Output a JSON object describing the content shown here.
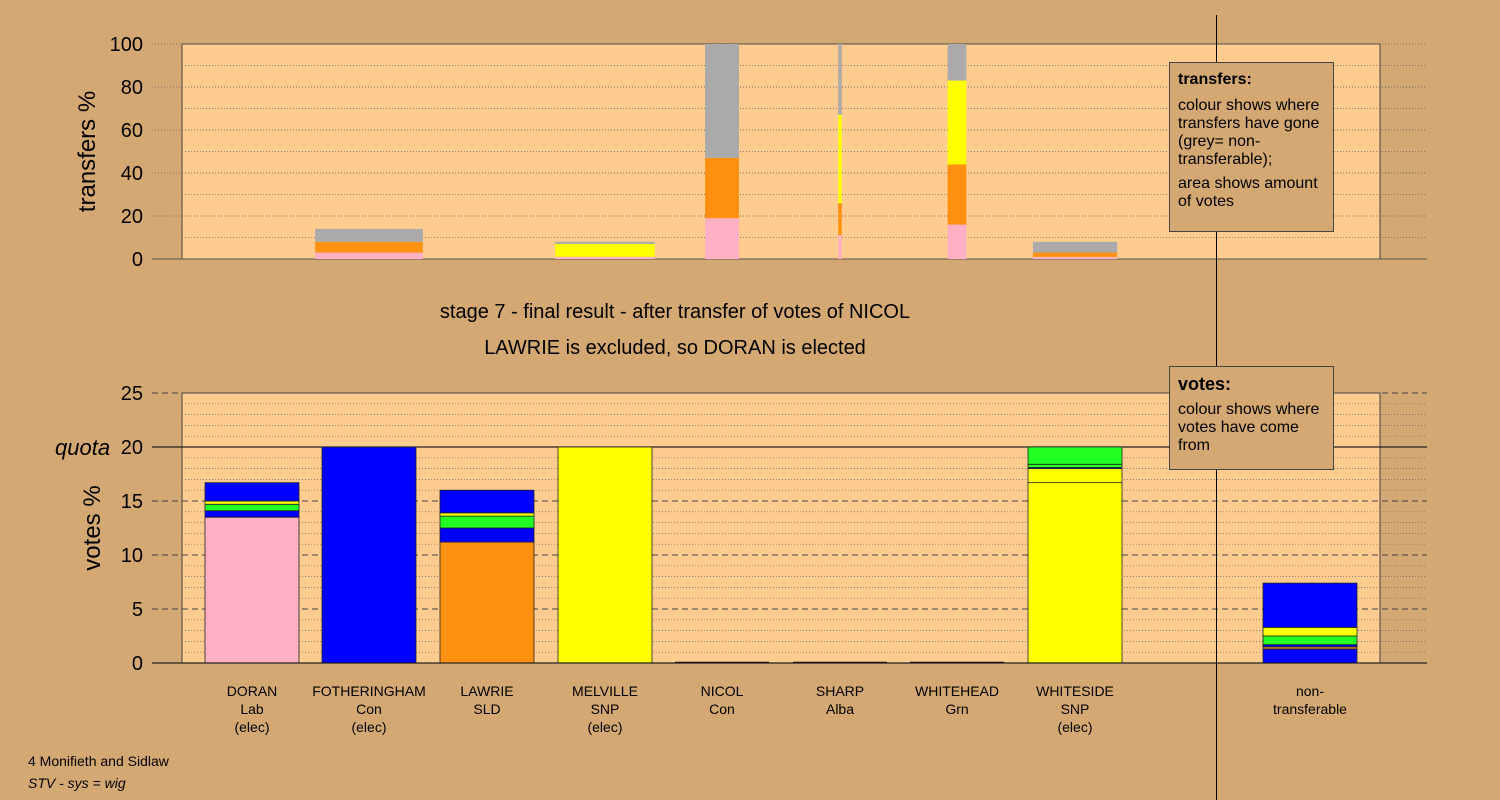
{
  "caption": {
    "line1": "stage 7 - final result - after transfer of votes of NICOL",
    "line2": "LAWRIE is excluded, so DORAN is elected"
  },
  "footer": {
    "line1": "4 Monifieth and Sidlaw",
    "line2": "STV - sys = wig"
  },
  "legend_transfers": {
    "title": "transfers:",
    "line1": "colour shows where transfers have gone (grey= non-transferable);",
    "line2": "area shows amount of votes"
  },
  "legend_votes": {
    "title": "votes:",
    "line1": "colour shows where votes have come from"
  },
  "colors": {
    "Lab": "#ffb0c4",
    "Con": "#0000ff",
    "SLD": "#ff9010",
    "SNP": "#ffff00",
    "Grn": "#22ff22",
    "NT": "#aaaaaa",
    "plot_bg": "#ffcc90",
    "page_bg": "#d4a872"
  },
  "chart_data": [
    {
      "type": "bar",
      "id": "transfers",
      "ylabel": "transfers %",
      "ylim": [
        0,
        100
      ],
      "yticks": [
        0,
        20,
        40,
        60,
        80,
        100
      ],
      "categories": [
        "DORAN",
        "FOTHERINGHAM",
        "LAWRIE",
        "MELVILLE",
        "NICOL",
        "SHARP",
        "WHITEHEAD",
        "WHITESIDE"
      ],
      "bars": [
        {
          "candidate": "FOTHERINGHAM",
          "width_rel": 0.92,
          "segments": [
            {
              "party": "Lab",
              "value": 3
            },
            {
              "party": "SLD",
              "value": 5
            },
            {
              "party": "NT",
              "value": 6
            }
          ]
        },
        {
          "candidate": "MELVILLE",
          "width_rel": 0.85,
          "segments": [
            {
              "party": "Lab",
              "value": 1
            },
            {
              "party": "SNP",
              "value": 6
            },
            {
              "party": "NT",
              "value": 1
            }
          ]
        },
        {
          "candidate": "NICOL",
          "width_rel": 0.29,
          "segments": [
            {
              "party": "Lab",
              "value": 19
            },
            {
              "party": "SLD",
              "value": 28
            },
            {
              "party": "NT",
              "value": 53
            }
          ]
        },
        {
          "candidate": "SHARP",
          "width_rel": 0.03,
          "segments": [
            {
              "party": "Lab",
              "value": 11
            },
            {
              "party": "SLD",
              "value": 15
            },
            {
              "party": "SNP",
              "value": 41
            },
            {
              "party": "NT",
              "value": 33
            }
          ]
        },
        {
          "candidate": "WHITEHEAD",
          "width_rel": 0.16,
          "segments": [
            {
              "party": "Lab",
              "value": 16
            },
            {
              "party": "SLD",
              "value": 28
            },
            {
              "party": "SNP",
              "value": 39
            },
            {
              "party": "NT",
              "value": 17
            }
          ]
        },
        {
          "candidate": "WHITESIDE",
          "width_rel": 0.72,
          "segments": [
            {
              "party": "Lab",
              "value": 1
            },
            {
              "party": "SLD",
              "value": 2
            },
            {
              "party": "NT",
              "value": 5
            }
          ]
        }
      ]
    },
    {
      "type": "bar",
      "id": "votes",
      "ylabel": "votes %",
      "ylim": [
        0,
        25
      ],
      "yticks": [
        0,
        5,
        10,
        15,
        20,
        25
      ],
      "quota": 20,
      "quota_label": "quota",
      "categories": [
        {
          "name": "DORAN",
          "party": "Lab",
          "status": "(elec)"
        },
        {
          "name": "FOTHERINGHAM",
          "party": "Con",
          "status": "(elec)"
        },
        {
          "name": "LAWRIE",
          "party": "SLD",
          "status": ""
        },
        {
          "name": "MELVILLE",
          "party": "SNP",
          "status": "(elec)"
        },
        {
          "name": "NICOL",
          "party": "Con",
          "status": ""
        },
        {
          "name": "SHARP",
          "party": "Alba",
          "status": ""
        },
        {
          "name": "WHITEHEAD",
          "party": "Grn",
          "status": ""
        },
        {
          "name": "WHITESIDE",
          "party": "SNP",
          "status": "(elec)"
        }
      ],
      "nontransferable_label": [
        "non-",
        "transferable"
      ],
      "bars": [
        {
          "candidate": "DORAN",
          "segments": [
            {
              "party": "Lab",
              "value": 13.5
            },
            {
              "party": "Con",
              "value": 0.6
            },
            {
              "party": "Grn",
              "value": 0.6
            },
            {
              "party": "SNP",
              "value": 0.3
            },
            {
              "party": "Con",
              "value": 1.7
            }
          ]
        },
        {
          "candidate": "FOTHERINGHAM",
          "segments": [
            {
              "party": "Con",
              "value": 20
            }
          ]
        },
        {
          "candidate": "LAWRIE",
          "segments": [
            {
              "party": "SLD",
              "value": 11.2
            },
            {
              "party": "Con",
              "value": 1.3
            },
            {
              "party": "Grn",
              "value": 1.1
            },
            {
              "party": "SNP",
              "value": 0.3
            },
            {
              "party": "Con",
              "value": 2.1
            }
          ]
        },
        {
          "candidate": "MELVILLE",
          "segments": [
            {
              "party": "SNP",
              "value": 20
            }
          ]
        },
        {
          "candidate": "NICOL",
          "segments": []
        },
        {
          "candidate": "SHARP",
          "segments": []
        },
        {
          "candidate": "WHITEHEAD",
          "segments": []
        },
        {
          "candidate": "WHITESIDE",
          "segments": [
            {
              "party": "SNP",
              "value": 16.7
            },
            {
              "party": "SNP",
              "value": 1.3
            },
            {
              "party": "Con",
              "value": 0.1
            },
            {
              "party": "Grn",
              "value": 0.3
            },
            {
              "party": "Grn",
              "value": 1.6
            }
          ]
        },
        {
          "candidate": "non-transferable",
          "segments": [
            {
              "party": "Con",
              "value": 1.3
            },
            {
              "party": "SLD",
              "value": 0.2
            },
            {
              "party": "Con",
              "value": 0.2
            },
            {
              "party": "Grn",
              "value": 0.8
            },
            {
              "party": "SNP",
              "value": 0.8
            },
            {
              "party": "Con",
              "value": 4.1
            }
          ]
        }
      ]
    }
  ]
}
